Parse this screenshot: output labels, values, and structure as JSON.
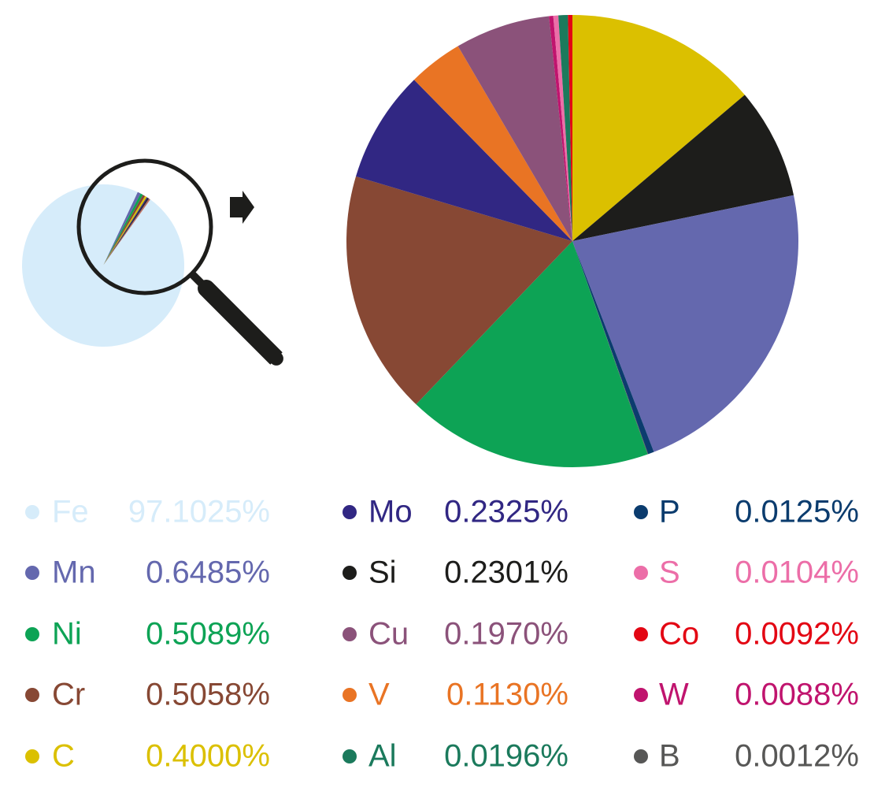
{
  "chart_data": {
    "type": "pie",
    "categories": [
      "Fe",
      "Mn",
      "Ni",
      "Cr",
      "C",
      "Mo",
      "Si",
      "Cu",
      "V",
      "Al",
      "P",
      "S",
      "Co",
      "W",
      "B"
    ],
    "values": [
      97.1025,
      0.6485,
      0.5089,
      0.5058,
      0.4,
      0.2325,
      0.2301,
      0.197,
      0.113,
      0.0196,
      0.0125,
      0.0104,
      0.0092,
      0.0088,
      0.0012
    ],
    "value_labels": [
      "97.1025%",
      "0.6485%",
      "0.5089%",
      "0.5058%",
      "0.4000%",
      "0.2325%",
      "0.2301%",
      "0.1970%",
      "0.1130%",
      "0.0196%",
      "0.0125%",
      "0.0104%",
      "0.0092%",
      "0.0088%",
      "0.0012%"
    ],
    "colors": [
      "#d6ecfa",
      "#6468ae",
      "#0da355",
      "#874834",
      "#dbc000",
      "#312783",
      "#1d1d1b",
      "#8b527a",
      "#e97424",
      "#1b7a5c",
      "#0b3c6e",
      "#ec6ea8",
      "#e30613",
      "#c0146e",
      "#575756"
    ]
  }
}
